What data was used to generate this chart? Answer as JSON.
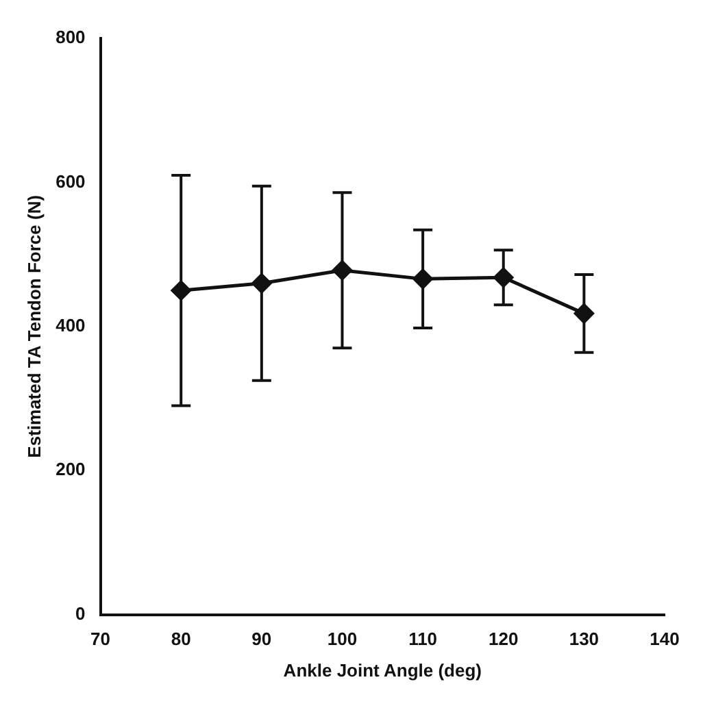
{
  "chart_data": {
    "type": "line",
    "xlabel": "Ankle Joint Angle (deg)",
    "ylabel": "Estimated TA Tendon Force (N)",
    "x": [
      80,
      90,
      100,
      110,
      120,
      130
    ],
    "series": [
      {
        "color": "#111111",
        "values": [
          450,
          460,
          478,
          466,
          468,
          418
        ],
        "errors": [
          160,
          135,
          108,
          68,
          38,
          54
        ]
      }
    ],
    "xlim": [
      70,
      140
    ],
    "xticks": [
      70,
      80,
      90,
      100,
      110,
      120,
      130,
      140
    ],
    "ylim": [
      0,
      800
    ],
    "yticks": [
      0,
      200,
      400,
      600,
      800
    ],
    "grid": false,
    "legend": false,
    "marker": "diamond",
    "line_style": "solid"
  }
}
